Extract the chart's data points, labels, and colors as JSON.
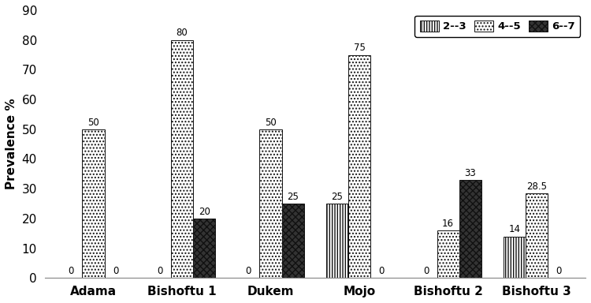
{
  "categories": [
    "Adama",
    "Bishoftu 1",
    "Dukem",
    "Mojo",
    "Bishoftu 2",
    "Bishoftu 3"
  ],
  "series": [
    {
      "label": "2--3",
      "hatch": "|||||",
      "color": "white",
      "edgecolor": "#111111",
      "values": [
        0,
        0,
        0,
        25,
        0,
        14
      ]
    },
    {
      "label": "4--5",
      "hatch": "....",
      "color": "white",
      "edgecolor": "#111111",
      "values": [
        50,
        80,
        50,
        75,
        16,
        28.5
      ]
    },
    {
      "label": "6--7",
      "hatch": "xxxx",
      "color": "#333333",
      "edgecolor": "#111111",
      "values": [
        0,
        20,
        25,
        0,
        33,
        0
      ]
    }
  ],
  "ylabel": "Prevalence %",
  "ylim": [
    0,
    90
  ],
  "yticks": [
    0,
    10,
    20,
    30,
    40,
    50,
    60,
    70,
    80,
    90
  ],
  "bar_width": 0.25,
  "legend_pos": "upper right",
  "value_fontsize": 8.5,
  "label_fontsize": 11,
  "tick_fontsize": 11,
  "legend_fontsize": 9.5,
  "figsize": [
    7.5,
    3.84
  ],
  "dpi": 100
}
